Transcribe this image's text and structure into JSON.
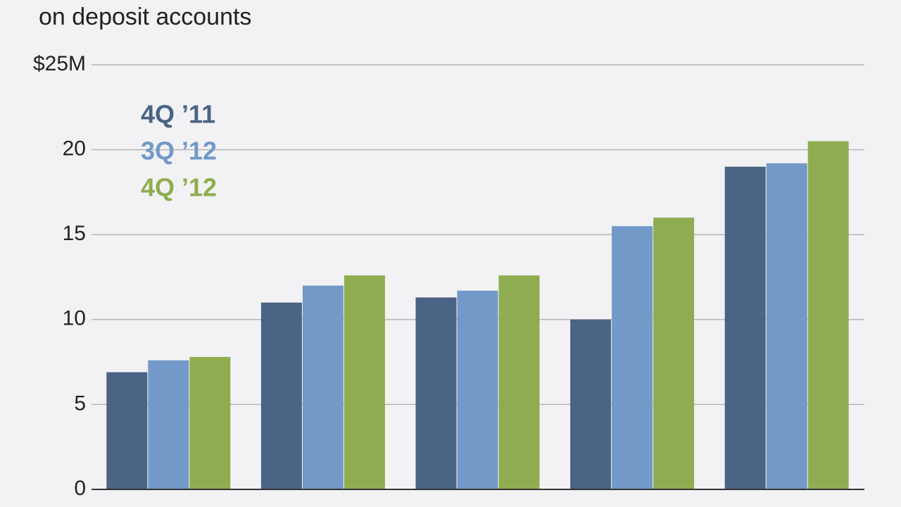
{
  "chart_data": {
    "type": "bar",
    "title": "on deposit accounts",
    "categories": [
      null,
      null,
      null,
      null,
      null
    ],
    "series": [
      {
        "name": "4Q ’11",
        "color": "#4b6384",
        "values": [
          6.9,
          11.0,
          11.3,
          10.0,
          19.0
        ]
      },
      {
        "name": "3Q ’12",
        "color": "#7299c8",
        "values": [
          7.6,
          12.0,
          11.7,
          15.5,
          19.2
        ]
      },
      {
        "name": "4Q ’12",
        "color": "#8fad50",
        "values": [
          7.8,
          12.6,
          12.6,
          16.0,
          20.5
        ]
      }
    ],
    "ylim": [
      0,
      25
    ],
    "yticks": [
      0,
      5,
      10,
      15,
      20,
      {
        "value": 25,
        "label": "$25M"
      }
    ],
    "grid": true,
    "legend": "upper-left"
  }
}
